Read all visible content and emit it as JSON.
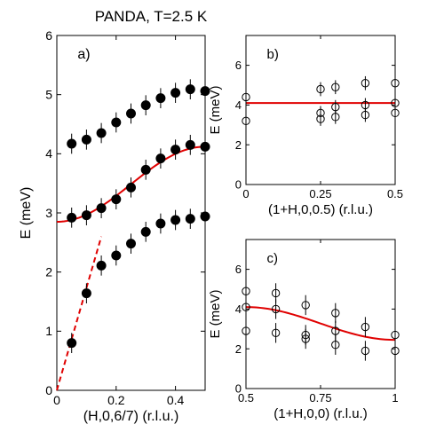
{
  "figure_title": "PANDA, T=2.5 K",
  "chart_data": [
    {
      "id": "a",
      "type": "scatter",
      "panel_label": "a)",
      "xlabel": "(H,0,6/7) (r.l.u.)",
      "ylabel": "E (meV)",
      "xlim": [
        0,
        0.5
      ],
      "ylim": [
        0,
        6
      ],
      "xticks": [
        0,
        0.2,
        0.4
      ],
      "xtick_labels": [
        "0",
        "0.2",
        "0.4"
      ],
      "yticks": [
        0,
        1,
        2,
        3,
        4,
        5,
        6
      ],
      "ytick_labels": [
        "0",
        "1",
        "2",
        "3",
        "4",
        "5",
        "6"
      ],
      "marker": "filled-circle",
      "grid": false,
      "series": [
        {
          "x": [
            0.05,
            0.1,
            0.15,
            0.2,
            0.25,
            0.3,
            0.35,
            0.4,
            0.45,
            0.5
          ],
          "y": [
            4.17,
            4.24,
            4.35,
            4.53,
            4.68,
            4.82,
            4.94,
            5.03,
            5.09,
            5.06
          ],
          "err": [
            0.17,
            0.17,
            0.17,
            0.17,
            0.17,
            0.17,
            0.17,
            0.17,
            0.17,
            0.17
          ]
        },
        {
          "x": [
            0.05,
            0.1,
            0.15,
            0.2,
            0.25,
            0.3,
            0.35,
            0.4,
            0.45,
            0.5
          ],
          "y": [
            2.92,
            2.96,
            3.08,
            3.23,
            3.43,
            3.73,
            3.92,
            4.07,
            4.15,
            4.12
          ],
          "err": [
            0.17,
            0.17,
            0.17,
            0.17,
            0.17,
            0.17,
            0.17,
            0.17,
            0.17,
            0.17
          ]
        },
        {
          "x": [
            0.05,
            0.1,
            0.15,
            0.2,
            0.25,
            0.3,
            0.35,
            0.4,
            0.45,
            0.5
          ],
          "y": [
            0.8,
            1.64,
            2.11,
            2.28,
            2.48,
            2.68,
            2.82,
            2.88,
            2.9,
            2.94
          ],
          "err": [
            0.17,
            0.17,
            0.17,
            0.17,
            0.17,
            0.17,
            0.17,
            0.17,
            0.17,
            0.17
          ]
        }
      ],
      "fit_curve": {
        "style": "solid",
        "color": "#e00000",
        "form": "cosine",
        "x": [
          0,
          0.5
        ],
        "y_at_0": 2.85,
        "y_at_end": 4.12
      },
      "slope_line": {
        "style": "dashed",
        "color": "#e00000",
        "x": [
          0,
          0.15
        ],
        "y": [
          0,
          2.6
        ]
      }
    },
    {
      "id": "b",
      "type": "scatter",
      "panel_label": "b)",
      "xlabel": "(1+H,0,0.5) (r.l.u.)",
      "ylabel": "E (meV)",
      "xlim": [
        0,
        0.5
      ],
      "ylim": [
        0,
        7.5
      ],
      "xticks": [
        0,
        0.25,
        0.5
      ],
      "xtick_labels": [
        "0",
        "0.25",
        "0.5"
      ],
      "yticks": [
        0,
        2,
        4,
        6
      ],
      "ytick_labels": [
        "0",
        "2",
        "4",
        "6"
      ],
      "marker": "open-circle",
      "grid": false,
      "series": [
        {
          "x": [
            0,
            0,
            0.25,
            0.25,
            0.25,
            0.3,
            0.3,
            0.3,
            0.4,
            0.4,
            0.4,
            0.5,
            0.5,
            0.5
          ],
          "y": [
            4.4,
            3.2,
            4.8,
            3.6,
            3.3,
            4.9,
            3.9,
            3.4,
            5.1,
            4.0,
            3.5,
            5.1,
            4.1,
            3.6
          ],
          "err": [
            0.35,
            0.35,
            0.35,
            0.35,
            0.35,
            0.35,
            0.35,
            0.35,
            0.35,
            0.35,
            0.35,
            0.35,
            0.35,
            0.35
          ]
        }
      ],
      "fit_curve": {
        "style": "solid",
        "color": "#e00000",
        "form": "flat",
        "x": [
          0,
          0.5
        ],
        "y_at_0": 4.1,
        "y_at_end": 4.1
      }
    },
    {
      "id": "c",
      "type": "scatter",
      "panel_label": "c)",
      "xlabel": "(1+H,0,0) (r.l.u.)",
      "ylabel": "E (meV)",
      "xlim": [
        0.5,
        1
      ],
      "ylim": [
        0,
        7.5
      ],
      "xticks": [
        0.5,
        0.75,
        1
      ],
      "xtick_labels": [
        "0.5",
        "0.75",
        "1"
      ],
      "yticks": [
        0,
        2,
        4,
        6
      ],
      "ytick_labels": [
        "0",
        "2",
        "4",
        "6"
      ],
      "marker": "open-circle",
      "grid": false,
      "series": [
        {
          "x": [
            0.5,
            0.5,
            0.5,
            0.6,
            0.6,
            0.6,
            0.7,
            0.7,
            0.7,
            0.8,
            0.8,
            0.8,
            0.9,
            0.9,
            1.0,
            1.0
          ],
          "y": [
            4.9,
            4.1,
            2.9,
            4.8,
            4.0,
            2.8,
            4.2,
            2.7,
            2.5,
            3.8,
            2.9,
            2.2,
            3.1,
            1.9,
            2.7,
            1.9
          ],
          "err": [
            0.5,
            0.5,
            0.5,
            0.5,
            0.5,
            0.5,
            0.5,
            0.5,
            0.5,
            0.5,
            0.5,
            0.5,
            0.5,
            0.5,
            0.5,
            0.5
          ]
        }
      ],
      "fit_curve": {
        "style": "solid",
        "color": "#e00000",
        "form": "cosine",
        "x": [
          0.5,
          1
        ],
        "y_at_0": 4.1,
        "y_at_end": 2.45
      }
    }
  ]
}
